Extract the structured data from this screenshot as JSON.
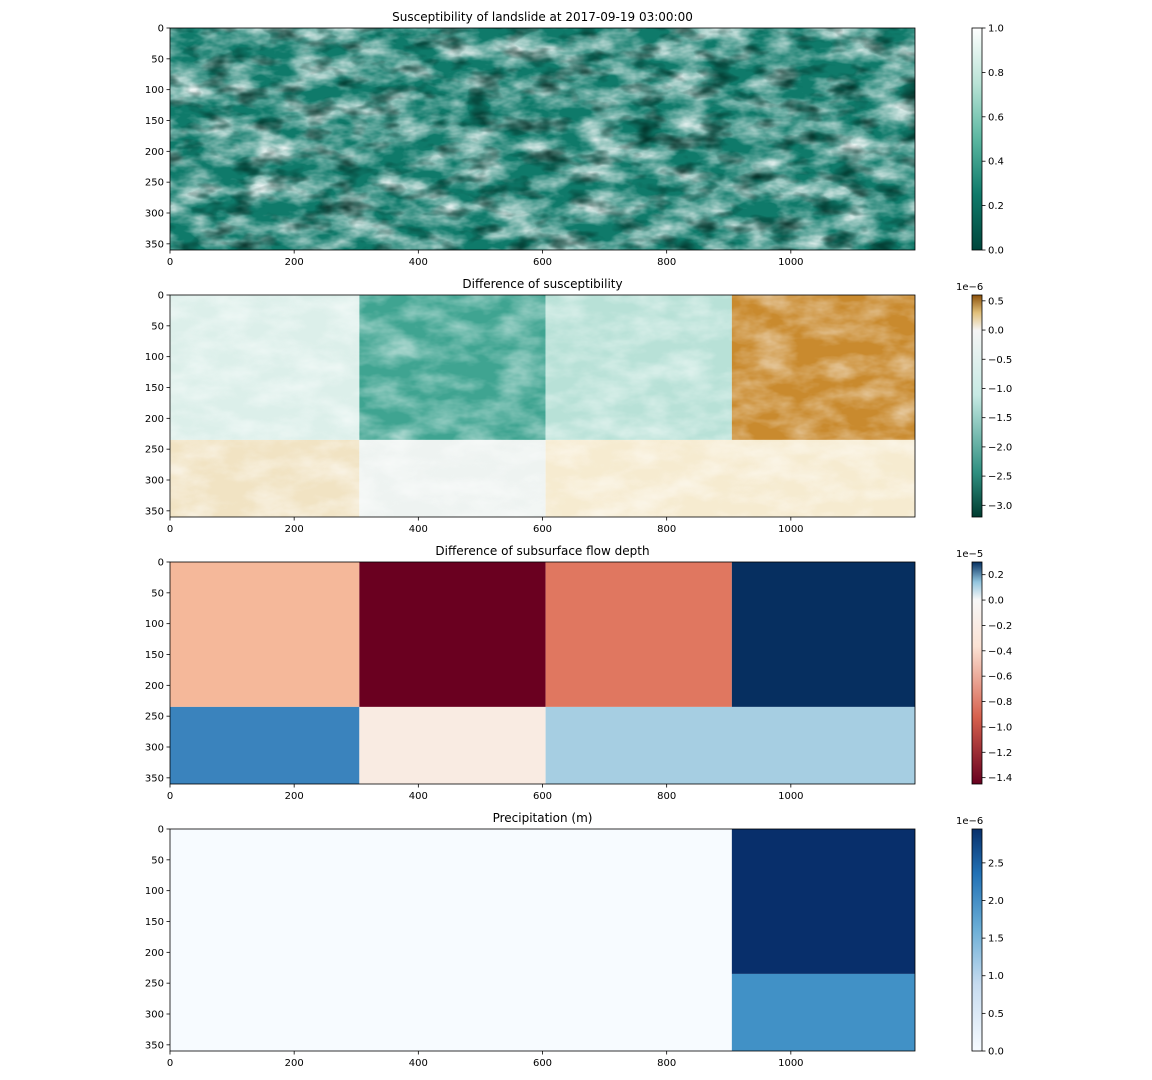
{
  "chart_data": [
    {
      "type": "heatmap",
      "title": "Susceptibility of landslide at 2017-09-19 03:00:00",
      "xlim": [
        0,
        1200
      ],
      "ylim": [
        0,
        360
      ],
      "x_ticks": [
        0,
        200,
        400,
        600,
        800,
        1000
      ],
      "y_ticks": [
        0,
        50,
        100,
        150,
        200,
        250,
        300,
        350
      ],
      "colormap": "BuGn_r-like",
      "colors": {
        "low": "#00463c",
        "mid": "#0f7a6a",
        "high": "#ffffff"
      },
      "texture": "terrain",
      "colorbar": {
        "offset": "",
        "ticks": [
          "0.0",
          "0.2",
          "0.4",
          "0.6",
          "0.8",
          "1.0"
        ],
        "values": [
          0.0,
          0.2,
          0.4,
          0.6,
          0.8,
          1.0
        ],
        "positions": [
          0.0,
          0.2,
          0.4,
          0.6,
          0.8,
          1.0
        ],
        "min": 0,
        "max": 1
      }
    },
    {
      "type": "heatmap",
      "title": "Difference of susceptibility",
      "xlim": [
        0,
        1200
      ],
      "ylim": [
        0,
        360
      ],
      "x_ticks": [
        0,
        200,
        400,
        600,
        800,
        1000
      ],
      "y_ticks": [
        0,
        50,
        100,
        150,
        200,
        250,
        300,
        350
      ],
      "colormap": "BrBG",
      "texture": "terrain",
      "colorbar": {
        "offset": "1e−6",
        "ticks": [
          "−3.0",
          "−2.5",
          "−2.0",
          "−1.5",
          "−1.0",
          "−0.5",
          "0.0",
          "0.5"
        ],
        "values": [
          -3.0,
          -2.5,
          -2.0,
          -1.5,
          -1.0,
          -0.5,
          0.0,
          0.5
        ],
        "min": -3.2,
        "max": 0.6
      },
      "blocks": [
        {
          "x0": 0,
          "x1": 305,
          "y0": 0,
          "y1": 235,
          "color": "#dcefea"
        },
        {
          "x0": 305,
          "x1": 605,
          "y0": 0,
          "y1": 235,
          "color": "#3fa491"
        },
        {
          "x0": 605,
          "x1": 905,
          "y0": 0,
          "y1": 235,
          "color": "#b8e1d7"
        },
        {
          "x0": 905,
          "x1": 1200,
          "y0": 0,
          "y1": 235,
          "color": "#c98a2e"
        },
        {
          "x0": 0,
          "x1": 305,
          "y0": 235,
          "y1": 360,
          "color": "#f1e3c3"
        },
        {
          "x0": 305,
          "x1": 605,
          "y0": 235,
          "y1": 360,
          "color": "#eef3f1"
        },
        {
          "x0": 605,
          "x1": 1200,
          "y0": 235,
          "y1": 360,
          "color": "#f6ebd0"
        }
      ]
    },
    {
      "type": "heatmap",
      "title": "Difference of subsurface flow depth",
      "xlim": [
        0,
        1200
      ],
      "ylim": [
        0,
        360
      ],
      "x_ticks": [
        0,
        200,
        400,
        600,
        800,
        1000
      ],
      "y_ticks": [
        0,
        50,
        100,
        150,
        200,
        250,
        300,
        350
      ],
      "colormap": "RdBu",
      "colorbar": {
        "offset": "1e−5",
        "ticks": [
          "−1.4",
          "−1.2",
          "−1.0",
          "−0.8",
          "−0.6",
          "−0.4",
          "−0.2",
          "0.0",
          "0.2"
        ],
        "values": [
          -1.4,
          -1.2,
          -1.0,
          -0.8,
          -0.6,
          -0.4,
          -0.2,
          0.0,
          0.2
        ],
        "min": -1.45,
        "max": 0.3
      },
      "blocks": [
        {
          "x0": 0,
          "x1": 305,
          "y0": 0,
          "y1": 235,
          "color": "#f5b89a"
        },
        {
          "x0": 305,
          "x1": 605,
          "y0": 0,
          "y1": 235,
          "color": "#6a0020"
        },
        {
          "x0": 605,
          "x1": 905,
          "y0": 0,
          "y1": 235,
          "color": "#e07760"
        },
        {
          "x0": 905,
          "x1": 1200,
          "y0": 0,
          "y1": 235,
          "color": "#062f60"
        },
        {
          "x0": 0,
          "x1": 305,
          "y0": 235,
          "y1": 360,
          "color": "#3a83bd"
        },
        {
          "x0": 305,
          "x1": 605,
          "y0": 235,
          "y1": 360,
          "color": "#f9ebe2"
        },
        {
          "x0": 605,
          "x1": 1200,
          "y0": 235,
          "y1": 360,
          "color": "#a6cee2"
        }
      ]
    },
    {
      "type": "heatmap",
      "title": "Precipitation (m)",
      "xlim": [
        0,
        1200
      ],
      "ylim": [
        0,
        360
      ],
      "x_ticks": [
        0,
        200,
        400,
        600,
        800,
        1000
      ],
      "y_ticks": [
        0,
        50,
        100,
        150,
        200,
        250,
        300,
        350
      ],
      "colormap": "Blues",
      "colorbar": {
        "offset": "1e−6",
        "ticks": [
          "0.0",
          "0.5",
          "1.0",
          "1.5",
          "2.0",
          "2.5"
        ],
        "values": [
          0.0,
          0.5,
          1.0,
          1.5,
          2.0,
          2.5
        ],
        "min": 0,
        "max": 2.95
      },
      "blocks": [
        {
          "x0": 0,
          "x1": 905,
          "y0": 0,
          "y1": 360,
          "color": "#f7fbff"
        },
        {
          "x0": 905,
          "x1": 1200,
          "y0": 0,
          "y1": 235,
          "color": "#082f6b"
        },
        {
          "x0": 905,
          "x1": 1200,
          "y0": 235,
          "y1": 360,
          "color": "#4191c6"
        }
      ]
    }
  ]
}
